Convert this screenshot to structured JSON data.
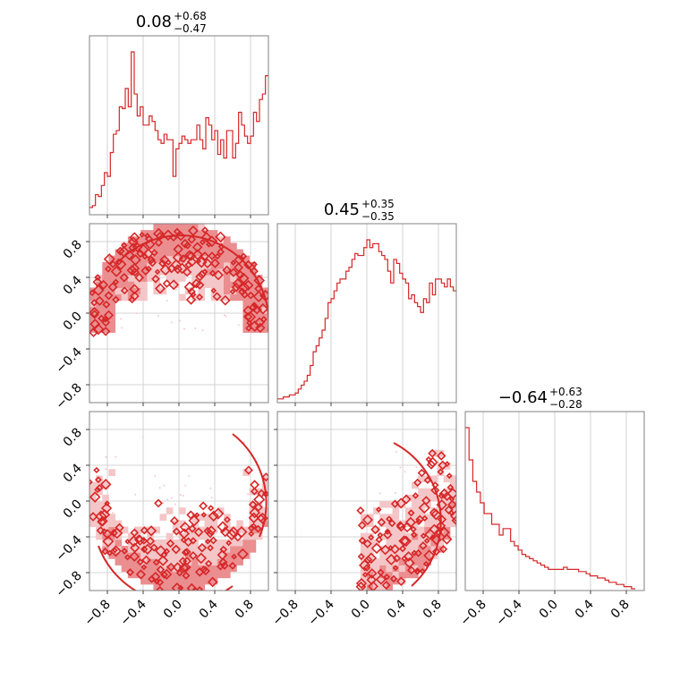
{
  "figure": {
    "params": [
      {
        "value": "0.08",
        "plus": "+0.68",
        "minus": "−0.47"
      },
      {
        "value": "0.45",
        "plus": "+0.35",
        "minus": "−0.35"
      },
      {
        "value": "−0.64",
        "plus": "+0.63",
        "minus": "−0.28"
      }
    ],
    "x_tick_labels": [
      "−0.8",
      "−0.4",
      "0.0",
      "0.4",
      "0.8"
    ],
    "y_tick_labels": [
      "−0.8",
      "−0.4",
      "0.0",
      "0.4",
      "0.8"
    ],
    "colors": {
      "line": "#d62728",
      "fill_light": "#f4c6c7",
      "fill_mid": "#ea8e90",
      "scatter": "#f6c9cf",
      "grid": "#c8c8c8",
      "frame": "#808080"
    }
  },
  "chart_data": {
    "type": "corner",
    "range": [
      -1.0,
      1.0
    ],
    "ticks": [
      -0.8,
      -0.4,
      0.0,
      0.4,
      0.8
    ],
    "grid": true,
    "histograms": [
      {
        "param_index": 0,
        "bins_lo": -1.0,
        "bins_hi": 1.0,
        "counts": [
          3,
          4,
          10,
          9,
          15,
          22,
          20,
          33,
          43,
          45,
          58,
          57,
          68,
          58,
          88,
          65,
          53,
          58,
          48,
          48,
          53,
          50,
          45,
          40,
          38,
          43,
          40,
          40,
          20,
          35,
          38,
          42,
          40,
          38,
          40,
          40,
          48,
          40,
          35,
          52,
          48,
          40,
          45,
          32,
          40,
          30,
          45,
          45,
          30,
          38,
          55,
          48,
          42,
          38,
          42,
          55,
          50,
          62,
          65,
          75
        ]
      },
      {
        "param_index": 1,
        "bins_lo": -1.0,
        "bins_hi": 1.0,
        "counts": [
          1,
          1,
          2,
          2,
          3,
          3,
          4,
          6,
          8,
          10,
          13,
          18,
          25,
          28,
          32,
          36,
          42,
          50,
          52,
          56,
          60,
          62,
          62,
          66,
          68,
          72,
          75,
          74,
          74,
          78,
          82,
          78,
          80,
          80,
          76,
          74,
          72,
          66,
          60,
          72,
          70,
          65,
          62,
          60,
          52,
          54,
          50,
          48,
          45,
          52,
          50,
          60,
          54,
          62,
          62,
          60,
          58,
          62,
          58,
          56
        ]
      },
      {
        "param_index": 2,
        "bins_lo": -1.0,
        "bins_hi": 0.9,
        "counts": [
          75,
          60,
          50,
          45,
          40,
          35,
          35,
          30,
          30,
          25,
          28,
          28,
          22,
          20,
          18,
          16,
          15,
          14,
          13,
          12,
          11,
          10,
          9,
          9,
          9,
          9,
          10,
          9,
          9,
          9,
          8,
          8,
          7,
          6,
          6,
          5,
          5,
          4,
          3,
          3,
          2,
          2,
          1,
          1,
          0
        ]
      }
    ],
    "pairs": [
      {
        "x_param": 0,
        "y_param": 1,
        "support": "upper-half-disk with hollow center"
      },
      {
        "x_param": 0,
        "y_param": 2,
        "support": "disk, density rising toward bottom"
      },
      {
        "x_param": 1,
        "y_param": 2,
        "support": "right half-disk, density rising toward bottom-right"
      }
    ]
  }
}
